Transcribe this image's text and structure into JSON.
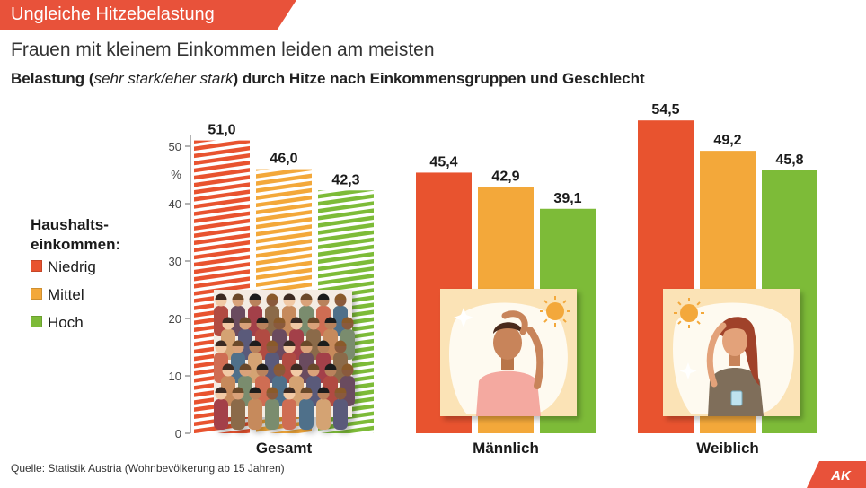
{
  "header": {
    "banner": "Ungleiche Hitzebelastung",
    "subtitle": "Frauen mit kleinem Einkommen leiden am meisten",
    "desc_pre": "Belastung (",
    "desc_italic": "sehr stark/eher stark",
    "desc_post": ") durch Hitze nach Einkommensgruppen und Geschlecht"
  },
  "legend": {
    "title": "Haushalts-einkommen:",
    "title_line1": "Haushalts-",
    "title_line2": "einkommen:",
    "items": [
      "Niedrig",
      "Mittel",
      "Hoch"
    ]
  },
  "colors": {
    "banner": "#e8523a",
    "niedrig": "#e8532f",
    "mittel": "#f3a83a",
    "hoch": "#7dbb38"
  },
  "source": "Quelle: Statistik Austria (Wohnbevölkerung ab 15 Jahren)",
  "logo": "AK",
  "chart_data": {
    "type": "bar",
    "title": "Belastung (sehr stark/eher stark) durch Hitze nach Einkommensgruppen und Geschlecht",
    "ylabel": "%",
    "ylim": [
      0,
      50
    ],
    "yticks": [
      0,
      10,
      20,
      30,
      40,
      50
    ],
    "categories": [
      "Gesamt",
      "Männlich",
      "Weiblich"
    ],
    "series": [
      {
        "name": "Niedrig",
        "values": [
          51.0,
          45.4,
          54.5
        ],
        "labels": [
          "51,0",
          "45,4",
          "54,5"
        ]
      },
      {
        "name": "Mittel",
        "values": [
          46.0,
          42.9,
          49.2
        ],
        "labels": [
          "46,0",
          "42,9",
          "49,2"
        ]
      },
      {
        "name": "Hoch",
        "values": [
          42.3,
          39.1,
          45.8
        ],
        "labels": [
          "42,3",
          "39,1",
          "45,8"
        ]
      }
    ]
  }
}
